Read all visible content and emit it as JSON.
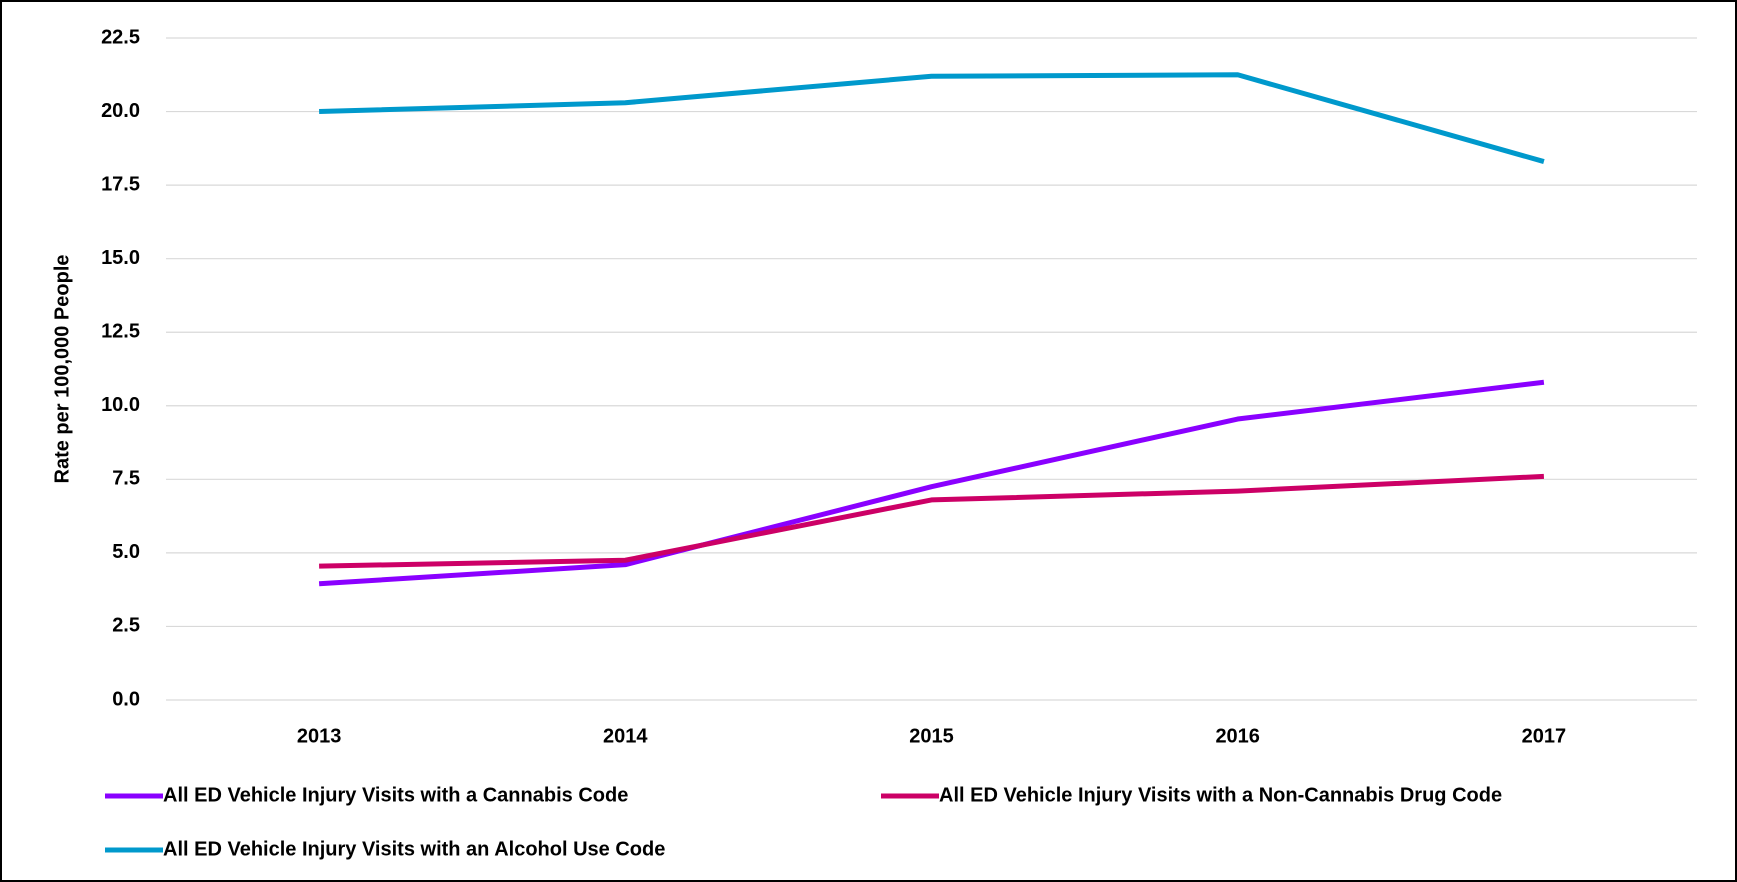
{
  "chart_data": {
    "type": "line",
    "y_label": "Rate per 100,000 People",
    "categories": [
      "2013",
      "2014",
      "2015",
      "2016",
      "2017"
    ],
    "series": [
      {
        "name": "All ED Vehicle Injury Visits with a Cannabis Code",
        "color": "#8a00ff",
        "values": [
          3.95,
          4.6,
          7.25,
          9.55,
          10.8
        ]
      },
      {
        "name": "All ED Vehicle Injury Visits with a Non-Cannabis Drug Code",
        "color": "#cc0066",
        "values": [
          4.55,
          4.75,
          6.8,
          7.1,
          7.6
        ]
      },
      {
        "name": "All ED Vehicle Injury Visits with an Alcohol Use Code",
        "color": "#0099cc",
        "values": [
          20.0,
          20.3,
          21.2,
          21.25,
          18.3
        ]
      }
    ],
    "ylim": [
      0,
      22.5
    ],
    "yticks": [
      {
        "value": 0,
        "label": "0.0"
      },
      2.5,
      {
        "value": 5,
        "label": "5.0"
      },
      7.5,
      {
        "value": 10,
        "label": "10.0"
      },
      12.5,
      {
        "value": 15,
        "label": "15.0"
      },
      17.5,
      {
        "value": 20,
        "label": "20.0"
      },
      22.5
    ],
    "grid": true,
    "legend": "bottom"
  }
}
